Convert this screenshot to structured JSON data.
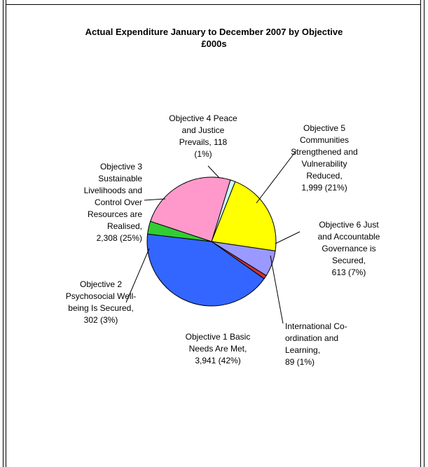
{
  "chart_data": {
    "type": "pie",
    "title_lines": [
      "Actual Expenditure January to December 2007 by Objective",
      "£000s"
    ],
    "slices": [
      {
        "label_lines": [
          "Objective 4 Peace",
          "and Justice",
          "Prevails,  118",
          "(1%)"
        ],
        "value": 118,
        "percent": 1,
        "color": "#ccffff"
      },
      {
        "label_lines": [
          "Objective 5",
          "Communities",
          "Strengthened and",
          "Vulnerability",
          "Reduced,",
          "1,999 (21%)"
        ],
        "value": 1999,
        "percent": 21,
        "color": "#ffff00"
      },
      {
        "label_lines": [
          "Objective 6 Just",
          "and Accountable",
          "Governance is",
          "Secured,",
          "613 (7%)"
        ],
        "value": 613,
        "percent": 7,
        "color": "#9999ff"
      },
      {
        "label_lines": [
          "International Co-",
          "ordination and",
          "Learning,",
          "89  (1%)"
        ],
        "value": 89,
        "percent": 1,
        "color": "#cc3333"
      },
      {
        "label_lines": [
          "Objective 1 Basic",
          "Needs Are Met,",
          "3,941 (42%)"
        ],
        "value": 3941,
        "percent": 42,
        "color": "#3366ff"
      },
      {
        "label_lines": [
          "Objective 2",
          "Psychosocial Well-",
          "being Is Secured,",
          "302 (3%)"
        ],
        "value": 302,
        "percent": 3,
        "color": "#33cc33"
      },
      {
        "label_lines": [
          "Objective 3",
          "Sustainable",
          "Livelihoods and",
          "Control Over",
          "Resources are",
          "Realised,",
          "2,308  (25%)"
        ],
        "value": 2308,
        "percent": 25,
        "color": "#ff99cc"
      }
    ]
  }
}
